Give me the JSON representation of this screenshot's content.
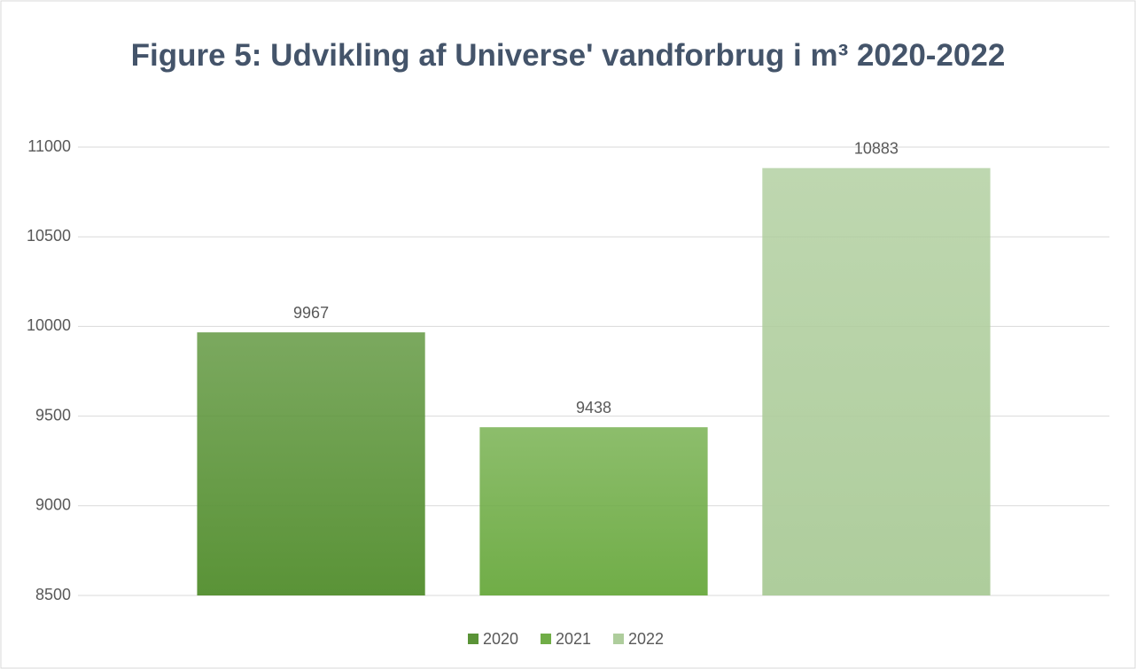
{
  "chart_data": {
    "type": "bar",
    "title": "Figure 5: Udvikling af Universe' vandforbrug i m³ 2020-2022",
    "categories": [
      null
    ],
    "series": [
      {
        "name": "2020",
        "color": "#5a9337",
        "values": [
          9967
        ]
      },
      {
        "name": "2021",
        "color": "#70ad47",
        "values": [
          9438
        ]
      },
      {
        "name": "2022",
        "color": "#aecd9c",
        "values": [
          10883
        ]
      }
    ],
    "ylim": [
      8500,
      11000
    ],
    "yticks": [
      8500,
      9000,
      9500,
      10000,
      10500,
      11000
    ],
    "grid": true,
    "legend": "bottom"
  }
}
